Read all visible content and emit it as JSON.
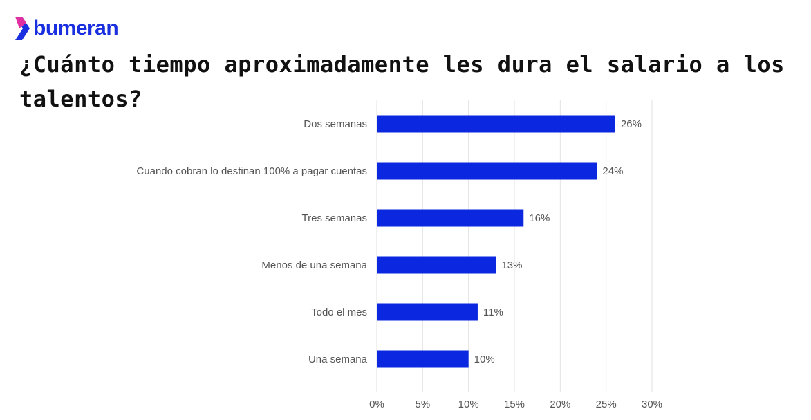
{
  "brand": "bumeran",
  "chart_data": {
    "type": "barh",
    "title": "¿Cuánto tiempo aproximadamente les dura el salario a los talentos?",
    "categories": [
      "Dos semanas",
      "Cuando cobran lo destinan 100% a pagar cuentas",
      "Tres semanas",
      "Menos de una semana",
      "Todo el mes",
      "Una semana"
    ],
    "values": [
      26,
      24,
      16,
      13,
      11,
      10
    ],
    "value_labels": [
      "26%",
      "24%",
      "16%",
      "13%",
      "11%",
      "10%"
    ],
    "color": "#0b27e0",
    "xlim": [
      0,
      30
    ],
    "xticks": [
      {
        "value": 0,
        "label": "0%"
      },
      {
        "value": 5,
        "label": "5%"
      },
      {
        "value": 10,
        "label": "10%"
      },
      {
        "value": 15,
        "label": "15%"
      },
      {
        "value": 20,
        "label": "20%"
      },
      {
        "value": 25,
        "label": "25%"
      },
      {
        "value": 30,
        "label": "30%"
      }
    ],
    "grid": true
  }
}
